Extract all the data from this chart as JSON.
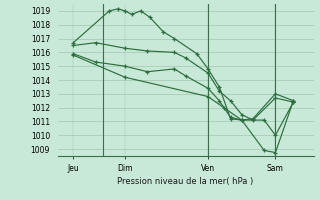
{
  "bg_color": "#c8e8d8",
  "grid_color": "#a0c8b0",
  "line_color": "#2d6e3e",
  "xlabel": "Pression niveau de la mer( hPa )",
  "ylim": [
    1008.5,
    1019.5
  ],
  "yticks": [
    1009,
    1010,
    1011,
    1012,
    1013,
    1014,
    1015,
    1016,
    1017,
    1018,
    1019
  ],
  "xlim": [
    -0.2,
    11.2
  ],
  "xtick_labels": [
    "Jeu",
    "Dim",
    "Ven",
    "Sam"
  ],
  "xtick_positions": [
    0.5,
    2.8,
    6.5,
    9.5
  ],
  "vline_positions": [
    1.8,
    6.5,
    9.5
  ],
  "series": [
    {
      "x": [
        0.5,
        2.1,
        2.5,
        2.8,
        3.1,
        3.5,
        3.9,
        4.5,
        5.0,
        6.0,
        6.5,
        7.0,
        7.5,
        8.0,
        9.0,
        9.5,
        10.3
      ],
      "y": [
        1016.7,
        1019.0,
        1019.15,
        1019.0,
        1018.75,
        1019.0,
        1018.55,
        1017.5,
        1017.0,
        1015.9,
        1014.8,
        1013.5,
        1011.2,
        1011.1,
        1011.1,
        1010.0,
        1012.4
      ]
    },
    {
      "x": [
        0.5,
        1.5,
        2.8,
        3.8,
        5.0,
        5.5,
        6.5,
        7.0,
        7.5,
        8.0,
        8.5,
        9.5,
        10.3
      ],
      "y": [
        1016.5,
        1016.7,
        1016.3,
        1016.1,
        1016.0,
        1015.6,
        1014.5,
        1013.2,
        1012.5,
        1011.5,
        1011.1,
        1012.7,
        1012.4
      ]
    },
    {
      "x": [
        0.5,
        1.5,
        2.8,
        3.8,
        5.0,
        5.5,
        6.5,
        7.0,
        7.5,
        8.0,
        8.5,
        9.5,
        10.3
      ],
      "y": [
        1015.9,
        1015.3,
        1015.0,
        1014.6,
        1014.8,
        1014.3,
        1013.4,
        1012.5,
        1011.3,
        1011.1,
        1011.2,
        1013.0,
        1012.5
      ]
    },
    {
      "x": [
        0.5,
        2.8,
        6.5,
        7.2,
        8.0,
        9.0,
        9.5,
        10.3
      ],
      "y": [
        1015.8,
        1014.2,
        1012.8,
        1012.0,
        1011.1,
        1008.9,
        1008.75,
        1012.5
      ]
    }
  ]
}
